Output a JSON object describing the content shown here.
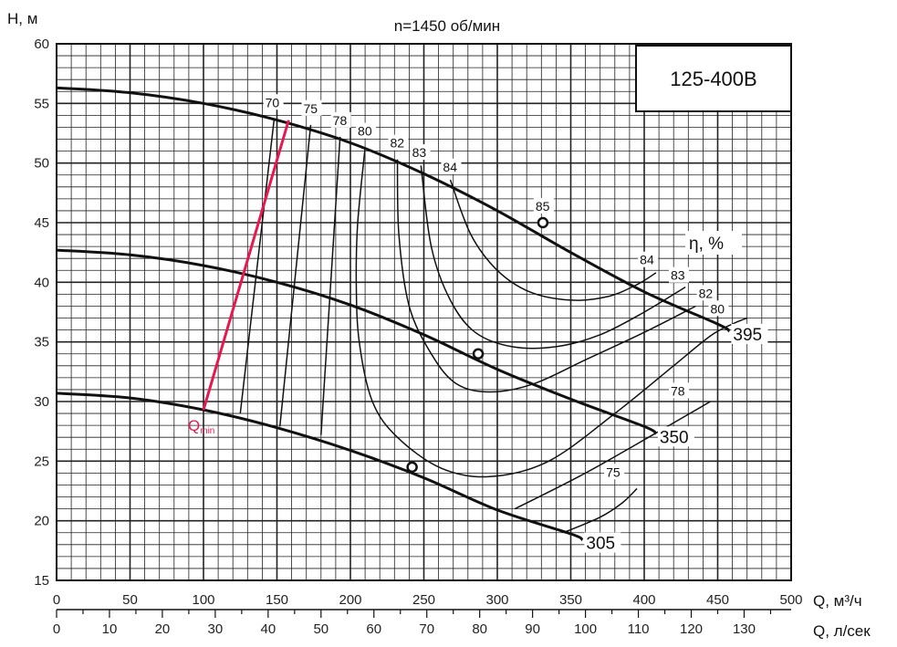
{
  "chart_data": {
    "type": "line",
    "title": "n=1450 об/мин",
    "model": "125-400В",
    "ylabel": "Н, м",
    "xlabel": "Q, м³/ч",
    "xlabel2": "Q, л/сек",
    "xlim": [
      0,
      500
    ],
    "ylim": [
      15,
      60
    ],
    "x_ticks": [
      0,
      50,
      100,
      150,
      200,
      250,
      300,
      350,
      400,
      450,
      500
    ],
    "y_ticks": [
      15,
      20,
      25,
      30,
      35,
      40,
      45,
      50,
      55,
      60
    ],
    "x2_ticks": [
      0,
      10,
      20,
      30,
      40,
      50,
      60,
      70,
      80,
      90,
      100,
      110,
      120,
      130
    ],
    "grid": true,
    "efficiency_label": "η, %",
    "qmin_label": "Q",
    "qmin_sub": "min",
    "qmin_color": "#e8174f",
    "impellers": [
      {
        "name": "395",
        "x": [
          0,
          50,
          100,
          150,
          200,
          250,
          300,
          350,
          400,
          450,
          458
        ],
        "y": [
          56.3,
          55.9,
          55.0,
          53.6,
          51.7,
          49.1,
          46.0,
          42.5,
          39.2,
          36.5,
          35.9
        ],
        "bep": [
          331,
          45.0
        ]
      },
      {
        "name": "350",
        "x": [
          0,
          50,
          100,
          150,
          200,
          250,
          300,
          350,
          400,
          408
        ],
        "y": [
          42.7,
          42.3,
          41.4,
          40.0,
          38.1,
          35.6,
          32.7,
          30.2,
          27.9,
          27.3
        ],
        "bep": [
          287,
          34.0
        ]
      },
      {
        "name": "305",
        "x": [
          0,
          50,
          100,
          150,
          200,
          250,
          300,
          350,
          358
        ],
        "y": [
          30.7,
          30.3,
          29.3,
          27.8,
          25.9,
          23.6,
          20.9,
          18.9,
          18.4
        ],
        "bep": [
          242,
          24.5
        ]
      }
    ],
    "efficiency_contours": [
      {
        "label": "70",
        "x": [
          148,
          125
        ],
        "y": [
          53.6,
          29.0
        ]
      },
      {
        "label": "75",
        "x": [
          173,
          152
        ],
        "y": [
          53.2,
          27.9
        ]
      },
      {
        "label": "78",
        "x": [
          193,
          180
        ],
        "y": [
          52.2,
          27.2
        ]
      },
      {
        "label": "80",
        "x": [
          210,
          205,
          204,
          206,
          215,
          232,
          262,
          295,
          335,
          380,
          420,
          445,
          460,
          470
        ],
        "y": [
          51.3,
          45.0,
          40.0,
          35.0,
          30.0,
          27.0,
          24.4,
          23.7,
          25.0,
          29.0,
          33.0,
          35.5,
          36.5,
          37.0
        ]
      },
      {
        "label": "82",
        "x": [
          232,
          233,
          240,
          255,
          272,
          295,
          325,
          360,
          400,
          435
        ],
        "y": [
          50.3,
          44.0,
          38.0,
          34.0,
          31.5,
          30.8,
          31.5,
          33.5,
          35.8,
          38.0
        ]
      },
      {
        "label": "83",
        "x": [
          248,
          255,
          268,
          285,
          310,
          340,
          370,
          400,
          428
        ],
        "y": [
          49.8,
          43.0,
          38.5,
          35.8,
          34.6,
          34.6,
          35.6,
          37.5,
          39.6
        ]
      },
      {
        "label": "84",
        "x": [
          268,
          282,
          300,
          322,
          350,
          375,
          395,
          408
        ],
        "y": [
          48.6,
          44.0,
          41.0,
          39.2,
          38.5,
          38.8,
          39.8,
          40.8
        ]
      },
      {
        "label": "78",
        "x": [
          312,
          360,
          410,
          445
        ],
        "y": [
          21.0,
          24.0,
          27.5,
          30.0
        ]
      },
      {
        "label": "75",
        "x": [
          345,
          370,
          385,
          395
        ],
        "y": [
          19.0,
          20.3,
          21.5,
          22.7
        ]
      }
    ],
    "qmin_line": {
      "x": [
        100,
        158
      ],
      "y": [
        29.3,
        53.6
      ]
    }
  }
}
